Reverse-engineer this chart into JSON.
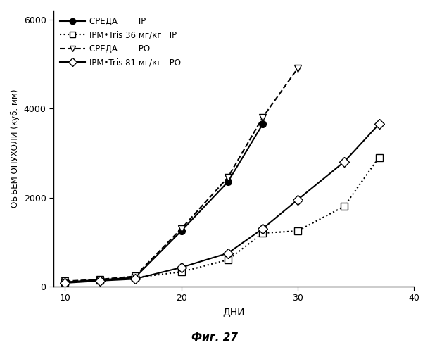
{
  "series": [
    {
      "label_ru": "СРЕДА",
      "label_en": "IP",
      "x": [
        10,
        13,
        16,
        20,
        24,
        27
      ],
      "y": [
        100,
        150,
        200,
        1250,
        2350,
        3650
      ],
      "color": "#000000",
      "linestyle": "-",
      "marker": "o",
      "markerfacecolor": "#000000",
      "markersize": 7,
      "linewidth": 1.5
    },
    {
      "label_ru": "IPM•Tris 36",
      "label_en": "IP",
      "x": [
        10,
        13,
        16,
        20,
        24,
        27,
        30,
        34,
        37
      ],
      "y": [
        100,
        150,
        200,
        330,
        600,
        1200,
        1250,
        1800,
        2900
      ],
      "color": "#000000",
      "linestyle": ":",
      "marker": "s",
      "markerfacecolor": "#ffffff",
      "markersize": 7,
      "linewidth": 1.5
    },
    {
      "label_ru": "СРЕДА",
      "label_en": "PO",
      "x": [
        10,
        13,
        16,
        20,
        24,
        27,
        30
      ],
      "y": [
        120,
        160,
        230,
        1300,
        2450,
        3800,
        4900
      ],
      "color": "#000000",
      "linestyle": "--",
      "marker": "v",
      "markerfacecolor": "#ffffff",
      "markersize": 7,
      "linewidth": 1.5
    },
    {
      "label_ru": "IPM•Tris 81",
      "label_en": "PO",
      "x": [
        10,
        13,
        16,
        20,
        24,
        27,
        30,
        34,
        37
      ],
      "y": [
        80,
        130,
        170,
        430,
        750,
        1300,
        1950,
        2800,
        3650
      ],
      "color": "#000000",
      "linestyle": "-",
      "marker": "D",
      "markerfacecolor": "#ffffff",
      "markersize": 7,
      "linewidth": 1.5
    }
  ],
  "xlabel": "ДНИ",
  "ylabel": "ОБЪЕМ ОПУХОЛИ (куб. мм)",
  "xlim": [
    9,
    40
  ],
  "ylim": [
    0,
    6200
  ],
  "xticks": [
    10,
    20,
    30,
    40
  ],
  "yticks": [
    0,
    2000,
    4000,
    6000
  ],
  "figure_title": "Фиг. 27",
  "background_color": "#ffffff"
}
